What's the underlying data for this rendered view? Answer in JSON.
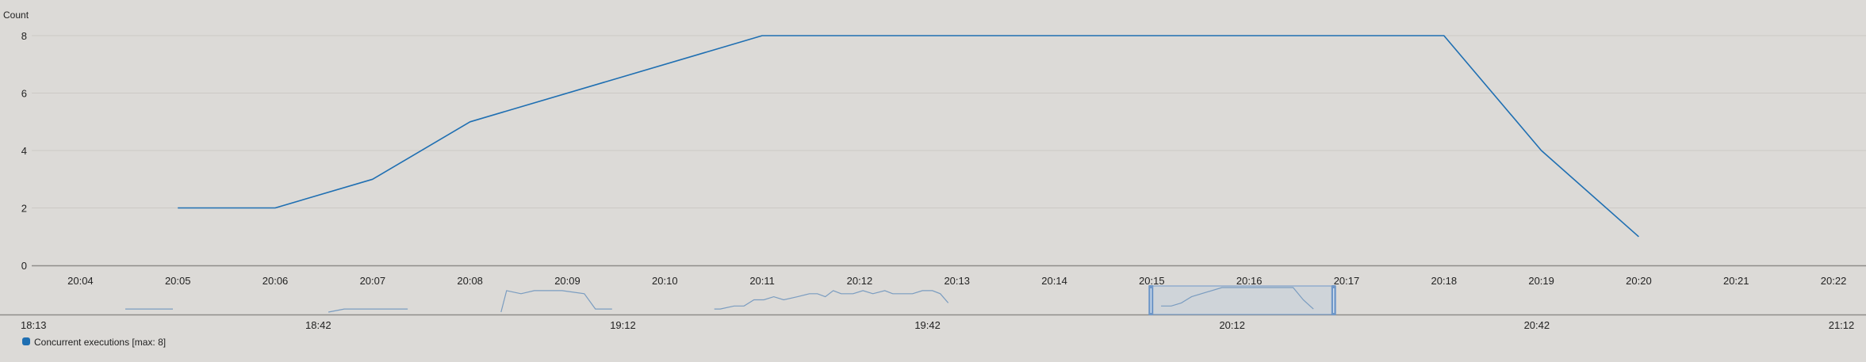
{
  "chart_data": {
    "type": "line",
    "ylabel": "Count",
    "ylim": [
      0,
      8
    ],
    "yticks": [
      "0",
      "2",
      "4",
      "6",
      "8"
    ],
    "x": [
      "20:05",
      "20:06",
      "20:07",
      "20:08",
      "20:11",
      "20:18",
      "20:19",
      "20:20"
    ],
    "series": [
      {
        "name": "Concurrent executions [max: 8]",
        "values": [
          2,
          2,
          3,
          5,
          8,
          8,
          4,
          1
        ],
        "color": "#1f6fb2"
      }
    ],
    "xticks": [
      "20:04",
      "20:05",
      "20:06",
      "20:07",
      "20:08",
      "20:09",
      "20:10",
      "20:11",
      "20:12",
      "20:13",
      "20:14",
      "20:15",
      "20:16",
      "20:17",
      "20:18",
      "20:19",
      "20:20",
      "20:21",
      "20:22"
    ],
    "xlim": [
      "20:03:30",
      "20:22:20"
    ],
    "grid": true,
    "legend_position": "bottom-left",
    "navigator": {
      "xticks": [
        "18:13",
        "18:42",
        "19:12",
        "19:42",
        "20:12",
        "20:42",
        "21:12"
      ],
      "selected_range": [
        "20:04",
        "20:22"
      ],
      "series_color": "#7a9cc0",
      "selection_color": "#a9c3df",
      "handle_color": "#6f97c8"
    }
  }
}
